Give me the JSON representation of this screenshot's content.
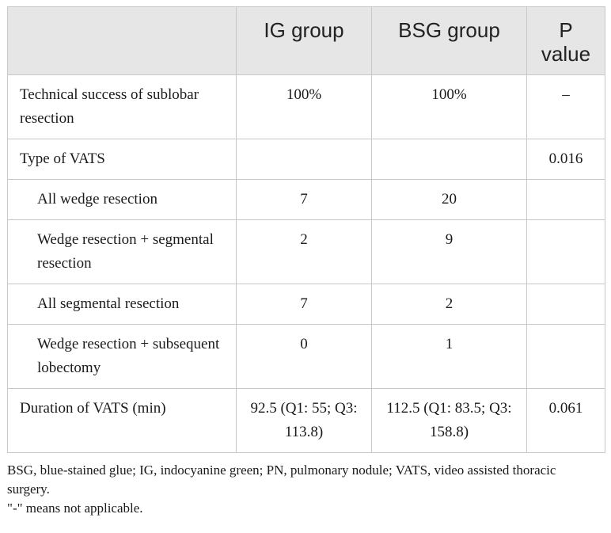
{
  "headers": [
    "",
    "IG group",
    "BSG group",
    "P value"
  ],
  "rows": [
    {
      "label": "Technical success of sublobar resection",
      "ig": "100%",
      "bsg": "100%",
      "p": "–",
      "indent": false
    },
    {
      "label": "Type of VATS",
      "ig": "",
      "bsg": "",
      "p": "0.016",
      "indent": false
    },
    {
      "label": "All wedge resection",
      "ig": "7",
      "bsg": "20",
      "p": "",
      "indent": true
    },
    {
      "label": "Wedge resection + segmental resection",
      "ig": "2",
      "bsg": "9",
      "p": "",
      "indent": true
    },
    {
      "label": "All segmental resection",
      "ig": "7",
      "bsg": "2",
      "p": "",
      "indent": true
    },
    {
      "label": "Wedge resection + subsequent lobectomy",
      "ig": "0",
      "bsg": "1",
      "p": "",
      "indent": true
    },
    {
      "label": "Duration of VATS (min)",
      "ig": "92.5 (Q1: 55; Q3: 113.8)",
      "bsg": "112.5 (Q1: 83.5; Q3: 158.8)",
      "p": "0.061",
      "indent": false
    }
  ],
  "footnotes": [
    "BSG, blue-stained glue; IG, indocyanine green; PN, pulmonary nodule; VATS, video assisted thoracic surgery.",
    "\"-\" means not applicable."
  ]
}
